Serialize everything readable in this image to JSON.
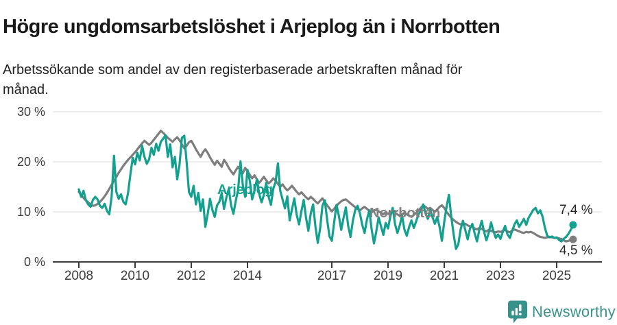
{
  "header": {
    "title": "Högre ungdomsarbetslöshet i Arjeplog än i Norrbotten",
    "subtitle": "Arbetssökande som andel av den registerbaserade arbetskraften månad för\nmånad."
  },
  "colors": {
    "arjeplog": "#13a08f",
    "norrbotten": "#7d7d7d",
    "gridline": "#e2e2e2",
    "axis": "#3c3c3c",
    "title_text": "#1a1a1a",
    "logo": "#38928c"
  },
  "branding": {
    "logo_text": "Newsworthy",
    "logo_icon": "speech-bubble-bar-chart-icon"
  },
  "chart_data": {
    "type": "line",
    "x_unit": "month",
    "x_start": "2008-01",
    "x_end": "2025-08",
    "ylim": [
      0,
      30
    ],
    "grid": "horizontal",
    "legend_position": "inline-labels",
    "y_ticks": [
      {
        "value": 0,
        "label": "0 %"
      },
      {
        "value": 10,
        "label": "10 %"
      },
      {
        "value": 20,
        "label": "20 %"
      },
      {
        "value": 30,
        "label": "30 %"
      }
    ],
    "x_ticks": [
      {
        "year": 2008,
        "label": "2008"
      },
      {
        "year": 2010,
        "label": "2010"
      },
      {
        "year": 2012,
        "label": "2012"
      },
      {
        "year": 2014,
        "label": "2014"
      },
      {
        "year": 2017,
        "label": "2017"
      },
      {
        "year": 2019,
        "label": "2019"
      },
      {
        "year": 2021,
        "label": "2021"
      },
      {
        "year": 2023,
        "label": "2023"
      },
      {
        "year": 2025,
        "label": "2025"
      }
    ],
    "series": [
      {
        "name": "Norrbotten",
        "color": "#7d7d7d",
        "end_label": "4,5 %",
        "end_value": 4.5,
        "values": [
          14.0,
          13.4,
          12.8,
          12.3,
          11.9,
          11.5,
          11.2,
          11.3,
          11.6,
          12.0,
          12.5,
          13.1,
          13.8,
          14.6,
          15.4,
          16.2,
          17.0,
          17.8,
          18.5,
          19.2,
          19.8,
          20.4,
          20.9,
          21.4,
          21.9,
          22.5,
          23.1,
          23.7,
          24.2,
          23.8,
          23.4,
          23.8,
          24.4,
          25.0,
          25.6,
          26.2,
          25.8,
          25.3,
          24.8,
          24.4,
          24.0,
          24.5,
          24.9,
          24.3,
          23.5,
          22.7,
          23.2,
          23.9,
          24.2,
          23.4,
          22.5,
          21.7,
          21.0,
          21.9,
          22.5,
          21.8,
          20.9,
          20.1,
          19.4,
          20.2,
          19.6,
          19.0,
          20.4,
          19.7,
          18.8,
          18.1,
          17.5,
          18.3,
          19.0,
          18.4,
          17.7,
          18.8,
          18.1,
          17.4,
          16.7,
          17.3,
          16.5,
          15.8,
          16.4,
          17.0,
          16.3,
          15.7,
          16.1,
          16.7,
          16.2,
          15.6,
          15.0,
          15.5,
          14.8,
          14.3,
          14.7,
          15.2,
          14.6,
          14.0,
          13.5,
          13.9,
          13.4,
          12.9,
          12.5,
          13.0,
          12.6,
          12.1,
          11.7,
          12.2,
          12.7,
          12.0,
          11.3,
          10.7,
          10.1,
          10.6,
          11.2,
          11.7,
          12.1,
          12.4,
          12.5,
          12.1,
          11.7,
          11.3,
          10.9,
          10.6,
          10.3,
          10.7,
          11.0,
          10.6,
          10.2,
          9.9,
          10.2,
          10.5,
          10.1,
          9.8,
          9.5,
          9.9,
          9.6,
          9.9,
          10.1,
          9.8,
          9.5,
          9.2,
          9.5,
          9.8,
          9.5,
          9.2,
          9.0,
          9.4,
          9.8,
          10.3,
          10.8,
          11.3,
          11.0,
          10.6,
          10.8,
          10.4,
          10.0,
          10.5,
          11.0,
          11.3,
          10.8,
          10.0,
          9.4,
          8.8,
          8.4,
          8.0,
          7.7,
          7.5,
          7.8,
          7.6,
          7.3,
          7.1,
          6.9,
          6.7,
          6.5,
          6.8,
          6.6,
          6.3,
          6.1,
          6.4,
          6.2,
          6.0,
          5.9,
          6.1,
          6.0,
          6.2,
          6.4,
          6.1,
          5.9,
          6.3,
          6.5,
          6.3,
          6.1,
          5.9,
          5.8,
          6.0,
          5.9,
          6.0,
          5.8,
          5.5,
          5.2,
          5.0,
          4.9,
          4.8,
          4.9,
          5.0,
          4.9,
          4.8,
          4.8,
          4.7,
          4.6,
          4.3,
          4.1,
          4.2,
          4.4,
          4.5
        ]
      },
      {
        "name": "Arjeplog",
        "color": "#13a08f",
        "end_label": "7,4 %",
        "end_value": 7.4,
        "values": [
          14.5,
          13.0,
          14.2,
          12.3,
          11.5,
          11.0,
          12.4,
          13.0,
          12.5,
          11.2,
          10.8,
          11.6,
          10.2,
          9.5,
          13.0,
          21.2,
          14.0,
          12.6,
          13.5,
          12.0,
          11.5,
          13.8,
          17.5,
          20.8,
          19.5,
          21.8,
          20.3,
          23.2,
          21.0,
          19.6,
          20.5,
          22.8,
          21.4,
          23.6,
          22.2,
          24.0,
          24.6,
          25.3,
          21.0,
          23.5,
          18.9,
          21.0,
          16.5,
          19.5,
          24.8,
          25.2,
          20.0,
          14.0,
          13.0,
          15.2,
          11.5,
          13.8,
          10.2,
          12.5,
          7.0,
          9.5,
          12.6,
          10.4,
          9.0,
          11.3,
          12.0,
          13.8,
          10.6,
          12.9,
          14.6,
          11.3,
          9.6,
          12.2,
          14.4,
          20.1,
          15.3,
          13.0,
          18.4,
          16.2,
          12.5,
          14.3,
          16.5,
          13.6,
          11.9,
          13.4,
          15.8,
          13.0,
          11.4,
          14.6,
          16.0,
          19.7,
          14.2,
          12.4,
          10.7,
          13.1,
          8.3,
          10.5,
          12.7,
          9.4,
          7.5,
          10.1,
          12.4,
          8.8,
          6.2,
          9.7,
          11.5,
          7.1,
          3.8,
          6.6,
          11.2,
          12.3,
          8.4,
          5.1,
          4.2,
          7.9,
          11.4,
          9.2,
          6.4,
          8.8,
          10.9,
          7.2,
          5.0,
          8.3,
          10.4,
          11.2,
          9.7,
          7.4,
          5.8,
          8.5,
          10.3,
          6.5,
          3.7,
          6.1,
          8.9,
          7.1,
          5.4,
          7.8,
          6.7,
          9.1,
          10.8,
          7.5,
          5.8,
          7.3,
          9.2,
          6.5,
          5.2,
          7.0,
          8.3,
          6.8,
          8.1,
          9.5,
          10.2,
          11.5,
          9.7,
          8.6,
          10.4,
          8.9,
          7.6,
          9.0,
          7.0,
          4.2,
          8.0,
          11.0,
          13.4,
          9.0,
          5.5,
          2.6,
          3.5,
          6.5,
          8.2,
          6.3,
          4.5,
          6.7,
          7.6,
          5.7,
          4.1,
          6.5,
          8.2,
          6.0,
          4.3,
          5.8,
          7.9,
          6.1,
          4.8,
          5.5,
          4.6,
          6.0,
          7.2,
          5.5,
          4.8,
          6.2,
          7.5,
          8.3,
          7.0,
          7.8,
          8.6,
          7.4,
          8.8,
          9.6,
          10.4,
          10.8,
          9.7,
          10.3,
          9.0,
          6.8,
          5.2,
          4.9,
          5.1,
          4.8,
          4.9,
          4.4,
          4.1,
          4.6,
          5.0,
          5.6,
          6.4,
          7.4
        ]
      }
    ]
  }
}
